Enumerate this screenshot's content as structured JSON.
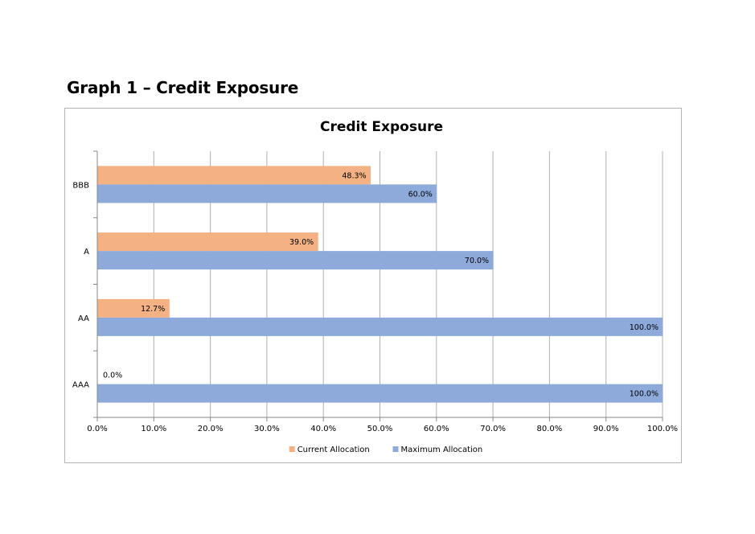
{
  "page": {
    "heading": "Graph 1 – Credit Exposure"
  },
  "chart_data": {
    "type": "bar",
    "orientation": "horizontal",
    "title": "Credit Exposure",
    "categories": [
      "BBB",
      "A",
      "AA",
      "AAA"
    ],
    "series": [
      {
        "name": "Current Allocation",
        "color": "#f4b183",
        "values": [
          48.3,
          39.0,
          12.7,
          0.0
        ],
        "labels": [
          "48.3%",
          "39.0%",
          "12.7%",
          "0.0%"
        ]
      },
      {
        "name": "Maximum Allocation",
        "color": "#8eaadb",
        "values": [
          60.0,
          70.0,
          100.0,
          100.0
        ],
        "labels": [
          "60.0%",
          "70.0%",
          "100.0%",
          "100.0%"
        ]
      }
    ],
    "xlim": [
      0,
      100
    ],
    "x_ticks": [
      "0.0%",
      "10.0%",
      "20.0%",
      "30.0%",
      "40.0%",
      "50.0%",
      "60.0%",
      "70.0%",
      "80.0%",
      "90.0%",
      "100.0%"
    ],
    "grid": true,
    "legend_position": "bottom",
    "xlabel": "",
    "ylabel": ""
  }
}
